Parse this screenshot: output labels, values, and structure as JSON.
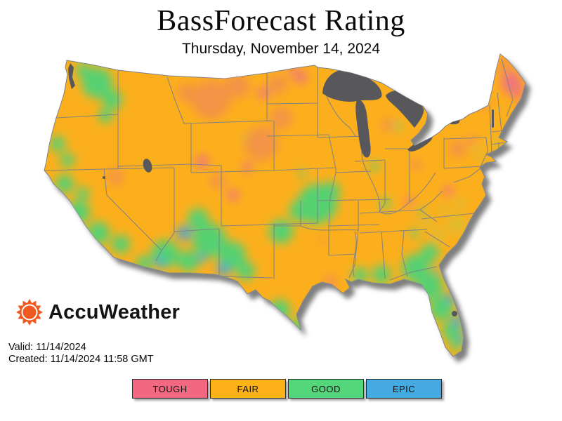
{
  "title": "BassForecast Rating",
  "subtitle": "Thursday, November 14, 2024",
  "logo": {
    "brand": "AccuWeather",
    "icon": "accuweather-sun-icon",
    "brand_color": "#EE5A1F"
  },
  "meta": {
    "valid": "Valid: 11/14/2024",
    "created": "Created: 11/14/2024 11:58 GMT"
  },
  "legend": {
    "items": [
      {
        "label": "TOUGH",
        "color": "#F26880"
      },
      {
        "label": "FAIR",
        "color": "#FBB117"
      },
      {
        "label": "GOOD",
        "color": "#53D579"
      },
      {
        "label": "EPIC",
        "color": "#45AAE2"
      }
    ]
  },
  "map": {
    "region": "Contiguous United States",
    "base_rating": "FAIR",
    "base_color": "#FCAF1C",
    "lake_color": "#58595B",
    "state_border_color": "#7C8089",
    "ratings_scale": [
      "TOUGH",
      "FAIR",
      "GOOD",
      "EPIC"
    ]
  }
}
